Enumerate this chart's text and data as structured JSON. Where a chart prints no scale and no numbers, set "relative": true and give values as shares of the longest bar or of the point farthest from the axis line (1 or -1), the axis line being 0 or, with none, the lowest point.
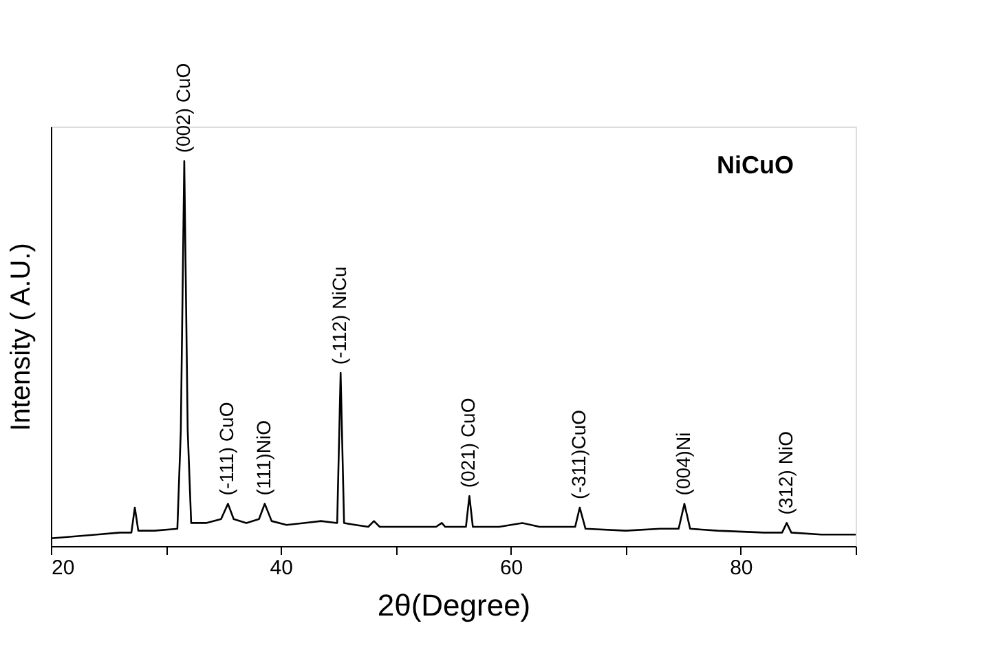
{
  "chart_data": {
    "type": "line",
    "relative": true,
    "xlabel": "2θ(Degree)",
    "ylabel": "Intensity ( A.U.)",
    "xlim": [
      20,
      90
    ],
    "xticks": [
      20,
      {
        "value": 30,
        "label": null
      },
      40,
      {
        "value": 50,
        "label": null
      },
      60,
      {
        "value": 70,
        "label": null
      },
      80,
      {
        "value": 90,
        "label": null
      }
    ],
    "tick_labels": "x",
    "grid": false,
    "marker": "none",
    "line_style": "solid",
    "series": [
      {
        "color": "#000000",
        "x": [
          20,
          22,
          24,
          26,
          27.0,
          27.3,
          27.6,
          29,
          31.0,
          31.3,
          31.6,
          31.9,
          32.2,
          33.5,
          34.8,
          35.4,
          35.9,
          37,
          38.1,
          38.6,
          39.2,
          40.5,
          42,
          43.5,
          44.9,
          45.2,
          45.5,
          46.5,
          47.6,
          48.1,
          48.6,
          51,
          53.5,
          54,
          54.3,
          56.1,
          56.4,
          56.7,
          59,
          61,
          62.5,
          65.6,
          66.0,
          66.5,
          70,
          73,
          74.6,
          75.1,
          75.6,
          78,
          82,
          83.6,
          84.0,
          84.4,
          87,
          90
        ],
        "values": [
          0.02,
          0.025,
          0.03,
          0.035,
          0.035,
          0.1,
          0.04,
          0.04,
          0.045,
          0.3,
          1.0,
          0.3,
          0.06,
          0.06,
          0.07,
          0.11,
          0.07,
          0.06,
          0.07,
          0.11,
          0.065,
          0.055,
          0.06,
          0.065,
          0.06,
          0.45,
          0.06,
          0.055,
          0.05,
          0.065,
          0.05,
          0.05,
          0.05,
          0.06,
          0.05,
          0.05,
          0.13,
          0.05,
          0.05,
          0.06,
          0.05,
          0.05,
          0.1,
          0.045,
          0.04,
          0.045,
          0.045,
          0.11,
          0.045,
          0.04,
          0.035,
          0.035,
          0.06,
          0.035,
          0.03,
          0.03
        ]
      }
    ],
    "annotations": [
      "NiCuO",
      {
        "text": "(002) CuO",
        "x": 31.6,
        "y": 1.0
      },
      {
        "text": "(-111) CuO",
        "x": 35.4,
        "y": 0.11
      },
      {
        "text": "(111)NiO",
        "x": 38.6,
        "y": 0.11
      },
      {
        "text": "(-112) NiCu",
        "x": 45.2,
        "y": 0.45
      },
      {
        "text": "(021) CuO",
        "x": 56.4,
        "y": 0.13
      },
      {
        "text": "(-311)CuO",
        "x": 66.0,
        "y": 0.1
      },
      {
        "text": "(004)Ni",
        "x": 75.1,
        "y": 0.11
      },
      {
        "text": "(312) NiO",
        "x": 84.0,
        "y": 0.06
      }
    ]
  }
}
